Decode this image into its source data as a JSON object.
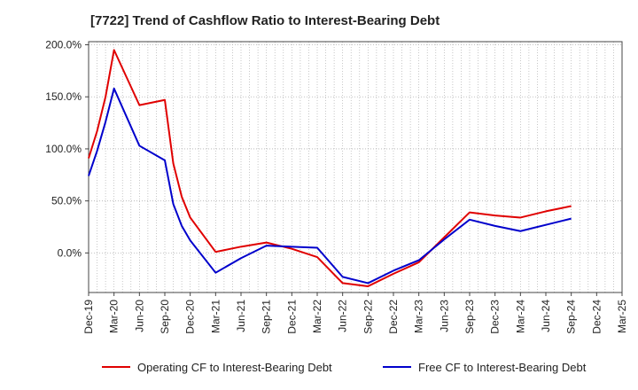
{
  "chart_data": {
    "type": "line",
    "title": "[7722]  Trend of Cashflow Ratio to Interest-Bearing Debt",
    "xlabel": "",
    "ylabel": "",
    "x_ticks": [
      "Dec-19",
      "Mar-20",
      "Jun-20",
      "Sep-20",
      "Dec-20",
      "Mar-21",
      "Jun-21",
      "Sep-21",
      "Dec-21",
      "Mar-22",
      "Jun-22",
      "Sep-22",
      "Dec-22",
      "Mar-23",
      "Jun-23",
      "Sep-23",
      "Dec-23",
      "Mar-24",
      "Jun-24",
      "Sep-24",
      "Dec-24",
      "Mar-25"
    ],
    "y_ticks": [
      "200.0%",
      "150.0%",
      "100.0%",
      "50.0%",
      "0.0%"
    ],
    "y_tick_values": [
      200,
      150,
      100,
      50,
      0
    ],
    "ylim": [
      -38,
      203
    ],
    "grid": true,
    "legend_position": "bottom",
    "series": [
      {
        "name": "Operating CF to Interest-Bearing Debt",
        "color": "#e00000",
        "x": [
          "Dec-19",
          "Jan-20",
          "Feb-20",
          "Mar-20",
          "Jun-20",
          "Sep-20",
          "Oct-20",
          "Nov-20",
          "Dec-20",
          "Mar-21",
          "Jun-21",
          "Sep-21",
          "Dec-21",
          "Mar-22",
          "Jun-22",
          "Sep-22",
          "Dec-22",
          "Mar-23",
          "Jun-23",
          "Sep-23",
          "Dec-23",
          "Mar-24",
          "Jun-24",
          "Sep-24"
        ],
        "values": [
          91,
          117,
          150,
          195,
          142,
          147,
          86,
          54,
          34,
          1,
          6,
          10,
          4,
          -4,
          -29,
          -32,
          -20,
          -9,
          15,
          39,
          36,
          34,
          40,
          45
        ]
      },
      {
        "name": "Free CF to Interest-Bearing Debt",
        "color": "#0000cc",
        "x": [
          "Dec-19",
          "Jan-20",
          "Feb-20",
          "Mar-20",
          "Jun-20",
          "Sep-20",
          "Oct-20",
          "Nov-20",
          "Dec-20",
          "Mar-21",
          "Jun-21",
          "Sep-21",
          "Dec-21",
          "Mar-22",
          "Jun-22",
          "Sep-22",
          "Dec-22",
          "Mar-23",
          "Jun-23",
          "Sep-23",
          "Dec-23",
          "Mar-24",
          "Jun-24",
          "Sep-24"
        ],
        "values": [
          74,
          98,
          126,
          158,
          103,
          89,
          47,
          26,
          12,
          -19,
          -5,
          7,
          6,
          5,
          -23,
          -29,
          -17,
          -7,
          13,
          32,
          26,
          21,
          27,
          33
        ]
      }
    ]
  }
}
